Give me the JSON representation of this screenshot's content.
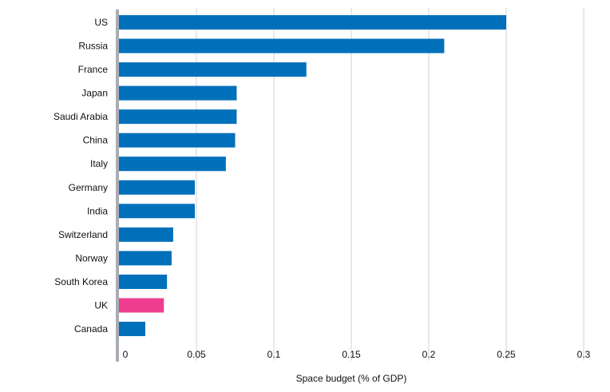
{
  "chart_data": {
    "type": "bar",
    "orientation": "horizontal",
    "title": "",
    "xlabel": "Space budget (% of GDP)",
    "ylabel": "",
    "xlim": [
      0,
      0.3
    ],
    "xticks": [
      "0",
      "0.05",
      "0.1",
      "0.15",
      "0.2",
      "0.25",
      "0.3"
    ],
    "xtick_values": [
      0,
      0.05,
      0.1,
      0.15,
      0.2,
      0.25,
      0.3
    ],
    "grid": true,
    "categories": [
      "US",
      "Russia",
      "France",
      "Japan",
      "Saudi Arabia",
      "China",
      "Italy",
      "Germany",
      "India",
      "Switzerland",
      "Norway",
      "South Korea",
      "UK",
      "Canada"
    ],
    "values": [
      0.25,
      0.21,
      0.121,
      0.076,
      0.076,
      0.075,
      0.069,
      0.049,
      0.049,
      0.035,
      0.034,
      0.031,
      0.029,
      0.017
    ],
    "highlight": "UK",
    "colors": {
      "default": "#0070bb",
      "highlight": "#ef3e8f",
      "grid": "#d0d3d8",
      "axis": "#a9adb3"
    }
  }
}
